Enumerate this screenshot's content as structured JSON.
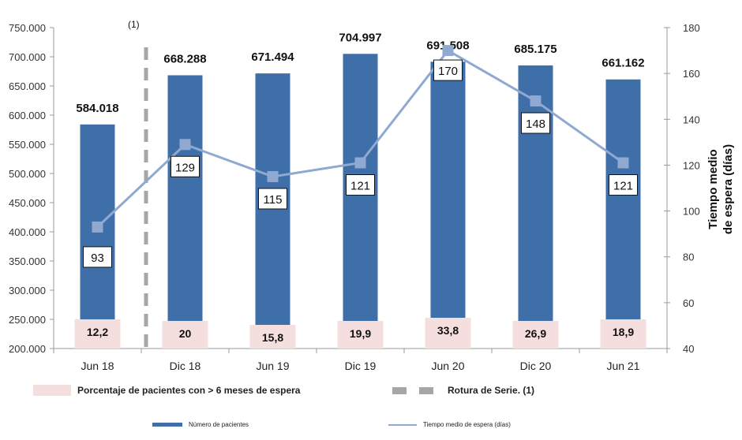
{
  "chart_data": {
    "type": "bar",
    "categories": [
      "Jun 18",
      "Dic 18",
      "Jun 19",
      "Dic 19",
      "Jun 20",
      "Dic 20",
      "Jun 21"
    ],
    "series": [
      {
        "name": "Número de pacientes",
        "type": "bar",
        "axis": "left",
        "values": [
          584018,
          668288,
          671494,
          704997,
          691508,
          685175,
          661162
        ],
        "labels": [
          "584.018",
          "668.288",
          "671.494",
          "704.997",
          "691.508",
          "685.175",
          "661.162"
        ],
        "color": "#3f6fa8"
      },
      {
        "name": "Tiempo medio de espera (días)",
        "type": "line",
        "axis": "right",
        "values": [
          93,
          129,
          115,
          121,
          170,
          148,
          121
        ],
        "color": "#8fa9d1"
      },
      {
        "name": "Porcentaje de pacientes con > 6 meses  de espera",
        "type": "label-box",
        "values": [
          "12,2",
          "20",
          "15,8",
          "19,9",
          "33,8",
          "26,9",
          "18,9"
        ],
        "color": "#f5dede"
      }
    ],
    "y_left": {
      "range": [
        200000,
        750000
      ],
      "ticks": [
        "200.000",
        "250.000",
        "300.000",
        "350.000",
        "400.000",
        "450.000",
        "500.000",
        "550.000",
        "600.000",
        "650.000",
        "700.000",
        "750.000"
      ]
    },
    "y_right": {
      "range": [
        40,
        180
      ],
      "ticks": [
        "40",
        "60",
        "80",
        "100",
        "120",
        "140",
        "160",
        "180"
      ],
      "label_line1": "Tiempo medio",
      "label_line2": "de espera (días)"
    },
    "series_break": {
      "after_category": "Jun 18",
      "note": "(1)",
      "legend": "Rotura de Serie. (1)",
      "color": "#a6a6a6"
    },
    "grid": false,
    "legend_position": "bottom"
  }
}
